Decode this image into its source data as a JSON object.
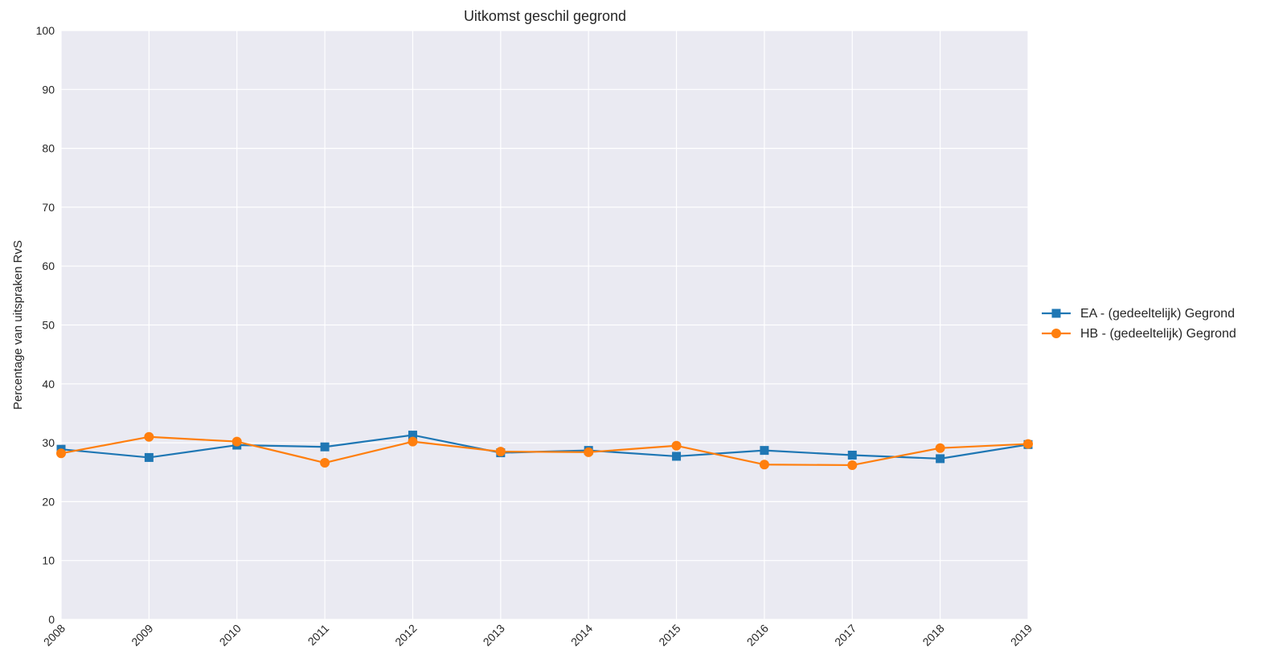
{
  "chart_data": {
    "type": "line",
    "title": "Uitkomst geschil gegrond",
    "xlabel": "",
    "ylabel": "Percentage van uitspraken RvS",
    "x": [
      "2008",
      "2009",
      "2010",
      "2011",
      "2012",
      "2013",
      "2014",
      "2015",
      "2016",
      "2017",
      "2018",
      "2019"
    ],
    "y_ticks": [
      "0",
      "10",
      "20",
      "30",
      "40",
      "50",
      "60",
      "70",
      "80",
      "90",
      "100"
    ],
    "ylim": [
      0,
      100
    ],
    "grid": true,
    "legend_position": "right",
    "background_color": "#eaeaf2",
    "grid_color": "#ffffff",
    "series": [
      {
        "name": "EA - (gedeeltelijk) Gegrond",
        "color": "#1f77b4",
        "marker": "square",
        "values": [
          28.9,
          27.5,
          29.6,
          29.3,
          31.3,
          28.3,
          28.7,
          27.7,
          28.7,
          27.9,
          27.3,
          29.7
        ]
      },
      {
        "name": "HB - (gedeeltelijk) Gegrond",
        "color": "#ff7f0e",
        "marker": "circle",
        "values": [
          28.2,
          31.0,
          30.2,
          26.6,
          30.2,
          28.5,
          28.4,
          29.5,
          26.3,
          26.2,
          29.1,
          29.8
        ]
      }
    ]
  }
}
